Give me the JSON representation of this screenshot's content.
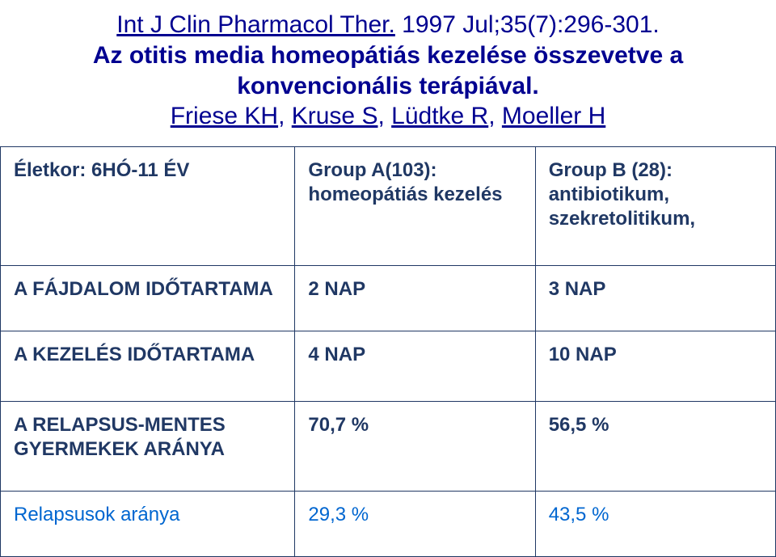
{
  "header": {
    "journal_link": "Int J Clin Pharmacol Ther.",
    "journal_rest": " 1997 Jul;35(7):296-301.",
    "study_title_l1": "Az otitis media homeopátiás kezelése összevetve a",
    "study_title_l2": "konvencionális terápiával.",
    "authors": [
      "Friese KH",
      "Kruse S",
      "Lüdtke R",
      "Moeller H"
    ]
  },
  "table": {
    "rows": [
      {
        "c0": "Életkor: 6HÓ-11 ÉV",
        "c1": "Group A(103): homeopátiás kezelés",
        "c2": "Group B (28): antibiotikum, szekretolitikum,"
      },
      {
        "c0": "A FÁJDALOM IDŐTARTAMA",
        "c1": "2 NAP",
        "c2": "3 NAP"
      },
      {
        "c0": "A KEZELÉS IDŐTARTAMA",
        "c1": "4 NAP",
        "c2": "10 NAP"
      },
      {
        "c0": "A RELAPSUS-MENTES GYERMEKEK ARÁNYA",
        "c1": "70,7  %",
        "c2": "56,5  %"
      },
      {
        "c0": "Relapsusok aránya",
        "c1": "29,3 %",
        "c2": "43,5 %"
      }
    ],
    "colors": {
      "border": "#203864",
      "text_main": "#203864",
      "text_rel": "#0066d0",
      "header_text": "#000090"
    }
  }
}
